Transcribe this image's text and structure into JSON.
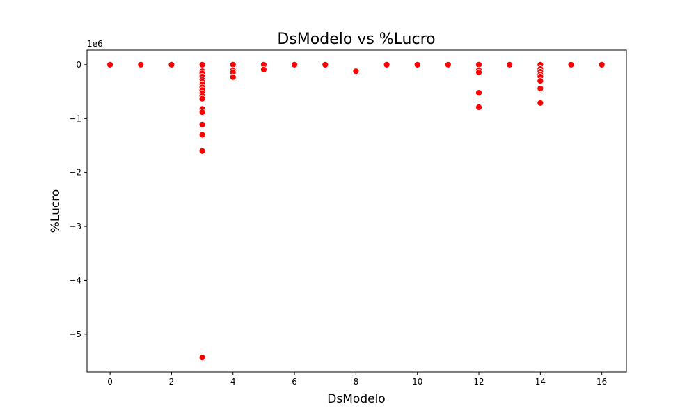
{
  "chart_data": {
    "type": "scatter",
    "title": "DsModelo vs %Lucro",
    "xlabel": "DsModelo",
    "ylabel": "%Lucro",
    "y_offset_label": "1e6",
    "xlim": [
      -0.75,
      16.8
    ],
    "ylim": [
      -5.7,
      0.27
    ],
    "x_ticks": [
      0,
      2,
      4,
      6,
      8,
      10,
      12,
      14,
      16
    ],
    "x_tick_labels": [
      "0",
      "2",
      "4",
      "6",
      "8",
      "10",
      "12",
      "14",
      "16"
    ],
    "y_ticks": [
      0,
      -1,
      -2,
      -3,
      -4,
      -5
    ],
    "y_tick_labels": [
      "0",
      "−1",
      "−2",
      "−3",
      "−4",
      "−5"
    ],
    "grid": false,
    "marker_color": "#ff0000",
    "marker_edge": "#ffffff",
    "series": [
      {
        "points": [
          [
            0,
            0
          ],
          [
            1,
            0
          ],
          [
            2,
            0
          ],
          [
            3,
            0
          ],
          [
            3,
            -0.12
          ],
          [
            3,
            -0.16
          ],
          [
            3,
            -0.22
          ],
          [
            3,
            -0.28
          ],
          [
            3,
            -0.32
          ],
          [
            3,
            -0.36
          ],
          [
            3,
            -0.42
          ],
          [
            3,
            -0.47
          ],
          [
            3,
            -0.53
          ],
          [
            3,
            -0.58
          ],
          [
            3,
            -0.63
          ],
          [
            3,
            -0.82
          ],
          [
            3,
            -0.88
          ],
          [
            3,
            -1.11
          ],
          [
            3,
            -1.3
          ],
          [
            3,
            -1.6
          ],
          [
            3,
            -5.43
          ],
          [
            4,
            0
          ],
          [
            4,
            -0.1
          ],
          [
            4,
            -0.14
          ],
          [
            4,
            -0.23
          ],
          [
            5,
            0
          ],
          [
            5,
            -0.09
          ],
          [
            6,
            0
          ],
          [
            7,
            0
          ],
          [
            8,
            -0.12
          ],
          [
            9,
            0
          ],
          [
            10,
            0
          ],
          [
            11,
            0
          ],
          [
            12,
            0
          ],
          [
            12,
            -0.1
          ],
          [
            12,
            -0.14
          ],
          [
            12,
            -0.52
          ],
          [
            12,
            -0.79
          ],
          [
            13,
            0
          ],
          [
            14,
            0
          ],
          [
            14,
            -0.08
          ],
          [
            14,
            -0.13
          ],
          [
            14,
            -0.18
          ],
          [
            14,
            -0.22
          ],
          [
            14,
            -0.3
          ],
          [
            14,
            -0.44
          ],
          [
            14,
            -0.71
          ],
          [
            15,
            0
          ],
          [
            16,
            0
          ]
        ]
      }
    ]
  }
}
